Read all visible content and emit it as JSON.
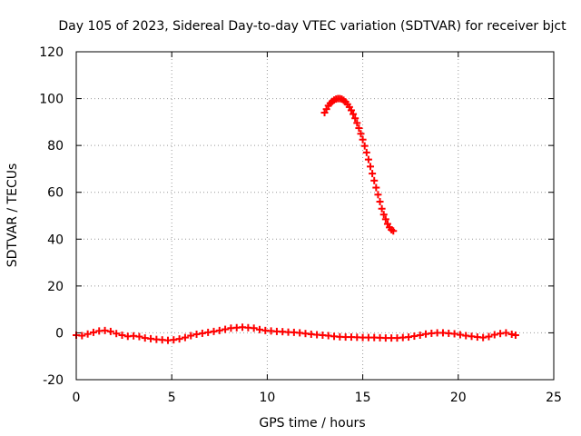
{
  "chart_data": {
    "type": "scatter",
    "title": "Day 105 of 2023, Sidereal Day-to-day VTEC variation (SDTVAR) for receiver bjct",
    "xlabel": "GPS time / hours",
    "ylabel": "SDTVAR / TECUs",
    "xlim": [
      0,
      25
    ],
    "ylim": [
      -20,
      120
    ],
    "x_ticks": [
      0,
      5,
      10,
      15,
      20,
      25
    ],
    "y_ticks": [
      -20,
      0,
      20,
      40,
      60,
      80,
      100,
      120
    ],
    "grid": true,
    "marker": "plus",
    "color": "#ff0000",
    "series": [
      {
        "points": [
          [
            0.0,
            -1.0
          ],
          [
            0.3,
            -1.2
          ],
          [
            0.6,
            -0.5
          ],
          [
            0.9,
            0.2
          ],
          [
            1.2,
            0.8
          ],
          [
            1.5,
            1.0
          ],
          [
            1.8,
            0.6
          ],
          [
            2.1,
            -0.3
          ],
          [
            2.4,
            -1.0
          ],
          [
            2.7,
            -1.5
          ],
          [
            3.0,
            -1.3
          ],
          [
            3.3,
            -1.6
          ],
          [
            3.6,
            -2.2
          ],
          [
            3.9,
            -2.5
          ],
          [
            4.2,
            -2.8
          ],
          [
            4.5,
            -3.0
          ],
          [
            4.8,
            -3.2
          ],
          [
            5.1,
            -3.0
          ],
          [
            5.4,
            -2.6
          ],
          [
            5.7,
            -2.0
          ],
          [
            6.0,
            -1.2
          ],
          [
            6.3,
            -0.6
          ],
          [
            6.6,
            -0.2
          ],
          [
            6.9,
            0.2
          ],
          [
            7.2,
            0.6
          ],
          [
            7.5,
            1.0
          ],
          [
            7.8,
            1.5
          ],
          [
            8.1,
            2.0
          ],
          [
            8.4,
            2.2
          ],
          [
            8.7,
            2.4
          ],
          [
            9.0,
            2.2
          ],
          [
            9.3,
            2.0
          ],
          [
            9.6,
            1.4
          ],
          [
            9.9,
            1.0
          ],
          [
            10.2,
            0.8
          ],
          [
            10.5,
            0.6
          ],
          [
            10.8,
            0.5
          ],
          [
            11.1,
            0.3
          ],
          [
            11.4,
            0.2
          ],
          [
            11.7,
            0.0
          ],
          [
            12.0,
            -0.3
          ],
          [
            12.3,
            -0.6
          ],
          [
            12.6,
            -0.8
          ],
          [
            12.9,
            -1.0
          ],
          [
            13.2,
            -1.2
          ],
          [
            13.5,
            -1.5
          ],
          [
            13.8,
            -1.7
          ],
          [
            14.1,
            -1.8
          ],
          [
            14.4,
            -1.8
          ],
          [
            14.7,
            -1.9
          ],
          [
            15.0,
            -2.0
          ],
          [
            15.3,
            -2.0
          ],
          [
            15.6,
            -2.0
          ],
          [
            15.9,
            -2.1
          ],
          [
            16.2,
            -2.2
          ],
          [
            16.5,
            -2.2
          ],
          [
            16.8,
            -2.2
          ],
          [
            17.1,
            -2.0
          ],
          [
            17.4,
            -1.8
          ],
          [
            17.7,
            -1.4
          ],
          [
            18.0,
            -1.0
          ],
          [
            18.3,
            -0.5
          ],
          [
            18.6,
            -0.2
          ],
          [
            18.9,
            0.0
          ],
          [
            19.2,
            0.0
          ],
          [
            19.5,
            -0.2
          ],
          [
            19.8,
            -0.4
          ],
          [
            20.1,
            -0.8
          ],
          [
            20.4,
            -1.2
          ],
          [
            20.7,
            -1.5
          ],
          [
            21.0,
            -1.8
          ],
          [
            21.3,
            -2.0
          ],
          [
            21.6,
            -1.6
          ],
          [
            21.9,
            -0.8
          ],
          [
            22.2,
            -0.3
          ],
          [
            22.5,
            0.0
          ],
          [
            22.8,
            -0.6
          ],
          [
            23.0,
            -1.0
          ],
          [
            13.0,
            94.0
          ],
          [
            13.1,
            95.5
          ],
          [
            13.2,
            97.0
          ],
          [
            13.3,
            98.0
          ],
          [
            13.4,
            98.8
          ],
          [
            13.5,
            99.4
          ],
          [
            13.6,
            99.8
          ],
          [
            13.7,
            100.0
          ],
          [
            13.8,
            100.0
          ],
          [
            13.9,
            99.8
          ],
          [
            14.0,
            99.3
          ],
          [
            14.1,
            98.6
          ],
          [
            14.2,
            97.6
          ],
          [
            14.3,
            96.4
          ],
          [
            14.4,
            95.0
          ],
          [
            14.5,
            93.4
          ],
          [
            14.6,
            91.6
          ],
          [
            14.7,
            89.6
          ],
          [
            14.8,
            87.4
          ],
          [
            14.9,
            85.0
          ],
          [
            15.0,
            82.5
          ],
          [
            15.1,
            79.8
          ],
          [
            15.2,
            77.0
          ],
          [
            15.3,
            74.0
          ],
          [
            15.4,
            71.0
          ],
          [
            15.5,
            68.0
          ],
          [
            15.6,
            65.0
          ],
          [
            15.7,
            62.0
          ],
          [
            15.8,
            59.0
          ],
          [
            15.9,
            56.0
          ],
          [
            16.0,
            53.0
          ],
          [
            16.1,
            50.5
          ],
          [
            16.2,
            48.5
          ],
          [
            16.3,
            46.5
          ],
          [
            16.4,
            45.0
          ],
          [
            16.5,
            44.0
          ],
          [
            16.6,
            43.5
          ]
        ]
      }
    ]
  }
}
